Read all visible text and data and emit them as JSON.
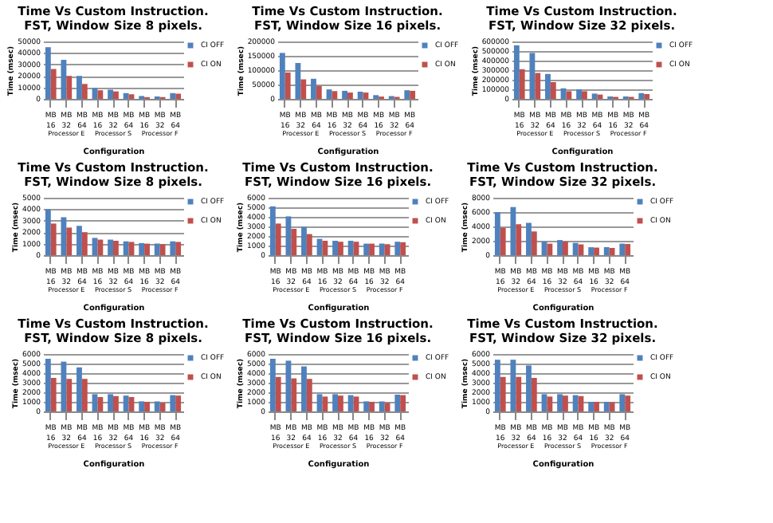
{
  "chart_data": [
    {
      "type": "bar",
      "title": "Time Vs Custom Instruction.\nFST, Window Size 8 pixels.",
      "xlabel": "Configuration",
      "ylabel": "Time (msec)",
      "categories": [
        "MB 16",
        "MB 32",
        "MB 64",
        "MB 16",
        "MB 32",
        "MB 64",
        "MB 16",
        "MB 32",
        "MB 64"
      ],
      "annotations": [
        "Processor E",
        "Processor S",
        "Processor F"
      ],
      "ylim": [
        0,
        50000
      ],
      "yticks": [
        0,
        10000,
        20000,
        30000,
        40000,
        50000
      ],
      "grid": "y",
      "legend": "right",
      "series": [
        {
          "name": "CI OFF",
          "color": "#4f81bd",
          "values": [
            45000,
            34000,
            20000,
            9500,
            8000,
            5000,
            2500,
            2000,
            5000
          ]
        },
        {
          "name": "CI ON",
          "color": "#c0504d",
          "values": [
            26000,
            20000,
            13000,
            7500,
            6500,
            4000,
            1500,
            1500,
            4500
          ]
        }
      ]
    },
    {
      "type": "bar",
      "title": "Time Vs Custom Instruction.\nFST, Window Size 16 pixels.",
      "xlabel": "Configuration",
      "ylabel": "Time (msec)",
      "categories": [
        "MB 16",
        "MB 32",
        "MB 64",
        "MB 16",
        "MB 32",
        "MB 64",
        "MB 16",
        "MB 32",
        "MB 64"
      ],
      "annotations": [
        "Processor E",
        "Processor S",
        "Processor F"
      ],
      "ylim": [
        0,
        200000
      ],
      "yticks": [
        0,
        50000,
        100000,
        150000,
        200000
      ],
      "grid": "y",
      "legend": "right",
      "series": [
        {
          "name": "CI OFF",
          "color": "#4f81bd",
          "values": [
            160000,
            125000,
            70000,
            33000,
            28000,
            25000,
            13000,
            10000,
            30000
          ]
        },
        {
          "name": "CI ON",
          "color": "#c0504d",
          "values": [
            92000,
            68000,
            45000,
            27000,
            22000,
            22000,
            8000,
            7000,
            28000
          ]
        }
      ]
    },
    {
      "type": "bar",
      "title": "Time Vs Custom Instruction.\nFST, Window Size 32 pixels.",
      "xlabel": "Configuration",
      "ylabel": "Time (msec)",
      "categories": [
        "MB 16",
        "MB 32",
        "MB 64",
        "MB 16",
        "MB 32",
        "MB 64",
        "MB 16",
        "MB 32",
        "MB 64"
      ],
      "annotations": [
        "Processor E",
        "Processor S",
        "Processor F"
      ],
      "ylim": [
        0,
        600000
      ],
      "yticks": [
        0,
        100000,
        200000,
        300000,
        400000,
        500000,
        600000
      ],
      "grid": "y",
      "legend": "right",
      "series": [
        {
          "name": "CI OFF",
          "color": "#4f81bd",
          "values": [
            560000,
            480000,
            260000,
            110000,
            100000,
            55000,
            25000,
            25000,
            60000
          ]
        },
        {
          "name": "CI ON",
          "color": "#c0504d",
          "values": [
            310000,
            270000,
            175000,
            80000,
            80000,
            45000,
            20000,
            20000,
            50000
          ]
        }
      ]
    },
    {
      "type": "bar",
      "title": "Time Vs Custom Instruction.\nFST, Window Size 8 pixels.",
      "xlabel": "Configuration",
      "ylabel": "Time (msec)",
      "categories": [
        "MB 16",
        "MB 32",
        "MB 64",
        "MB 16",
        "MB 32",
        "MB 64",
        "MB 16",
        "MB 32",
        "MB 64"
      ],
      "annotations": [
        "Processor E",
        "Processor S",
        "Processor F"
      ],
      "ylim": [
        0,
        5000
      ],
      "yticks": [
        0,
        1000,
        2000,
        3000,
        4000,
        5000
      ],
      "grid": "y",
      "legend": "right",
      "series": [
        {
          "name": "CI OFF",
          "color": "#4f81bd",
          "values": [
            4000,
            3300,
            2550,
            1500,
            1350,
            1200,
            1050,
            1000,
            1200
          ]
        },
        {
          "name": "CI ON",
          "color": "#c0504d",
          "values": [
            2750,
            2400,
            2000,
            1350,
            1250,
            1150,
            1000,
            950,
            1150
          ]
        }
      ]
    },
    {
      "type": "bar",
      "title": "Time Vs Custom Instruction.\nFST, Window Size 16 pixels.",
      "xlabel": "Configuration",
      "ylabel": "Time (msec)",
      "categories": [
        "MB 16",
        "MB 32",
        "MB 64",
        "MB 16",
        "MB 32",
        "MB 64",
        "MB 16",
        "MB 32",
        "MB 64"
      ],
      "annotations": [
        "Processor E",
        "Processor S",
        "Processor F"
      ],
      "ylim": [
        0,
        6000
      ],
      "yticks": [
        0,
        1000,
        2000,
        3000,
        4000,
        5000,
        6000
      ],
      "grid": "y",
      "legend": "right",
      "series": [
        {
          "name": "CI OFF",
          "color": "#4f81bd",
          "values": [
            5100,
            4050,
            2950,
            1700,
            1500,
            1500,
            1200,
            1200,
            1400
          ]
        },
        {
          "name": "CI ON",
          "color": "#c0504d",
          "values": [
            3300,
            2750,
            2200,
            1500,
            1400,
            1400,
            1200,
            1150,
            1350
          ]
        }
      ]
    },
    {
      "type": "bar",
      "title": "Time Vs Custom Instruction.\nFST, Window Size 32 pixels.",
      "xlabel": "Configuration",
      "ylabel": "Time (msec)",
      "categories": [
        "MB 16",
        "MB 32",
        "MB 64",
        "MB 16",
        "MB 32",
        "MB 64",
        "MB 16",
        "MB 32",
        "MB 64"
      ],
      "annotations": [
        "Processor E",
        "Processor S",
        "Processor F"
      ],
      "ylim": [
        0,
        8000
      ],
      "yticks": [
        0,
        2000,
        4000,
        6000,
        8000
      ],
      "grid": "y",
      "legend": "right",
      "series": [
        {
          "name": "CI OFF",
          "color": "#4f81bd",
          "values": [
            6000,
            6700,
            4500,
            1900,
            2100,
            1700,
            1100,
            1100,
            1600
          ]
        },
        {
          "name": "CI ON",
          "color": "#c0504d",
          "values": [
            3800,
            4300,
            3300,
            1600,
            1900,
            1500,
            1050,
            1000,
            1550
          ]
        }
      ]
    },
    {
      "type": "bar",
      "title": "Time Vs Custom Instruction.\nFST, Window Size 8 pixels.",
      "xlabel": "Configuration",
      "ylabel": "Time (msec)",
      "categories": [
        "MB 16",
        "MB 32",
        "MB 64",
        "MB 16",
        "MB 32",
        "MB 64",
        "MB 16",
        "MB 32",
        "MB 64"
      ],
      "annotations": [
        "Processor E",
        "Processor S",
        "Processor F"
      ],
      "ylim": [
        0,
        6000
      ],
      "yticks": [
        0,
        1000,
        2000,
        3000,
        4000,
        5000,
        6000
      ],
      "grid": "y",
      "legend": "right",
      "series": [
        {
          "name": "CI OFF",
          "color": "#4f81bd",
          "values": [
            5500,
            5200,
            4600,
            1800,
            1800,
            1650,
            1050,
            1050,
            1700
          ]
        },
        {
          "name": "CI ON",
          "color": "#c0504d",
          "values": [
            3500,
            3400,
            3400,
            1500,
            1600,
            1500,
            1000,
            900,
            1650
          ]
        }
      ]
    },
    {
      "type": "bar",
      "title": "Time Vs Custom Instruction.\nFST, Window Size 16 pixels.",
      "xlabel": "Configuration",
      "ylabel": "Time (msec)",
      "categories": [
        "MB 16",
        "MB 32",
        "MB 64",
        "MB 16",
        "MB 32",
        "MB 64",
        "MB 16",
        "MB 32",
        "MB 64"
      ],
      "annotations": [
        "Processor E",
        "Processor S",
        "Processor F"
      ],
      "ylim": [
        0,
        6000
      ],
      "yticks": [
        0,
        1000,
        2000,
        3000,
        4000,
        5000,
        6000
      ],
      "grid": "y",
      "legend": "right",
      "series": [
        {
          "name": "CI OFF",
          "color": "#4f81bd",
          "values": [
            5500,
            5300,
            4700,
            1800,
            1800,
            1700,
            1050,
            1050,
            1750
          ]
        },
        {
          "name": "CI ON",
          "color": "#c0504d",
          "values": [
            3600,
            3450,
            3400,
            1550,
            1650,
            1550,
            1000,
            900,
            1700
          ]
        }
      ]
    },
    {
      "type": "bar",
      "title": "Time Vs Custom Instruction.\nFST, Window Size 32 pixels.",
      "xlabel": "Configuration",
      "ylabel": "Time (msec)",
      "categories": [
        "MB 16",
        "MB 32",
        "MB 64",
        "MB 16",
        "MB 32",
        "MB 64",
        "MB 16",
        "MB 32",
        "MB 64"
      ],
      "annotations": [
        "Processor E",
        "Processor S",
        "Processor F"
      ],
      "ylim": [
        0,
        6000
      ],
      "yticks": [
        0,
        1000,
        2000,
        3000,
        4000,
        5000,
        6000
      ],
      "grid": "y",
      "legend": "right",
      "series": [
        {
          "name": "CI OFF",
          "color": "#4f81bd",
          "values": [
            5400,
            5400,
            4800,
            1800,
            1800,
            1700,
            1000,
            1000,
            1800
          ]
        },
        {
          "name": "CI ON",
          "color": "#c0504d",
          "values": [
            3600,
            3600,
            3500,
            1550,
            1650,
            1600,
            1000,
            950,
            1650
          ]
        }
      ]
    }
  ]
}
